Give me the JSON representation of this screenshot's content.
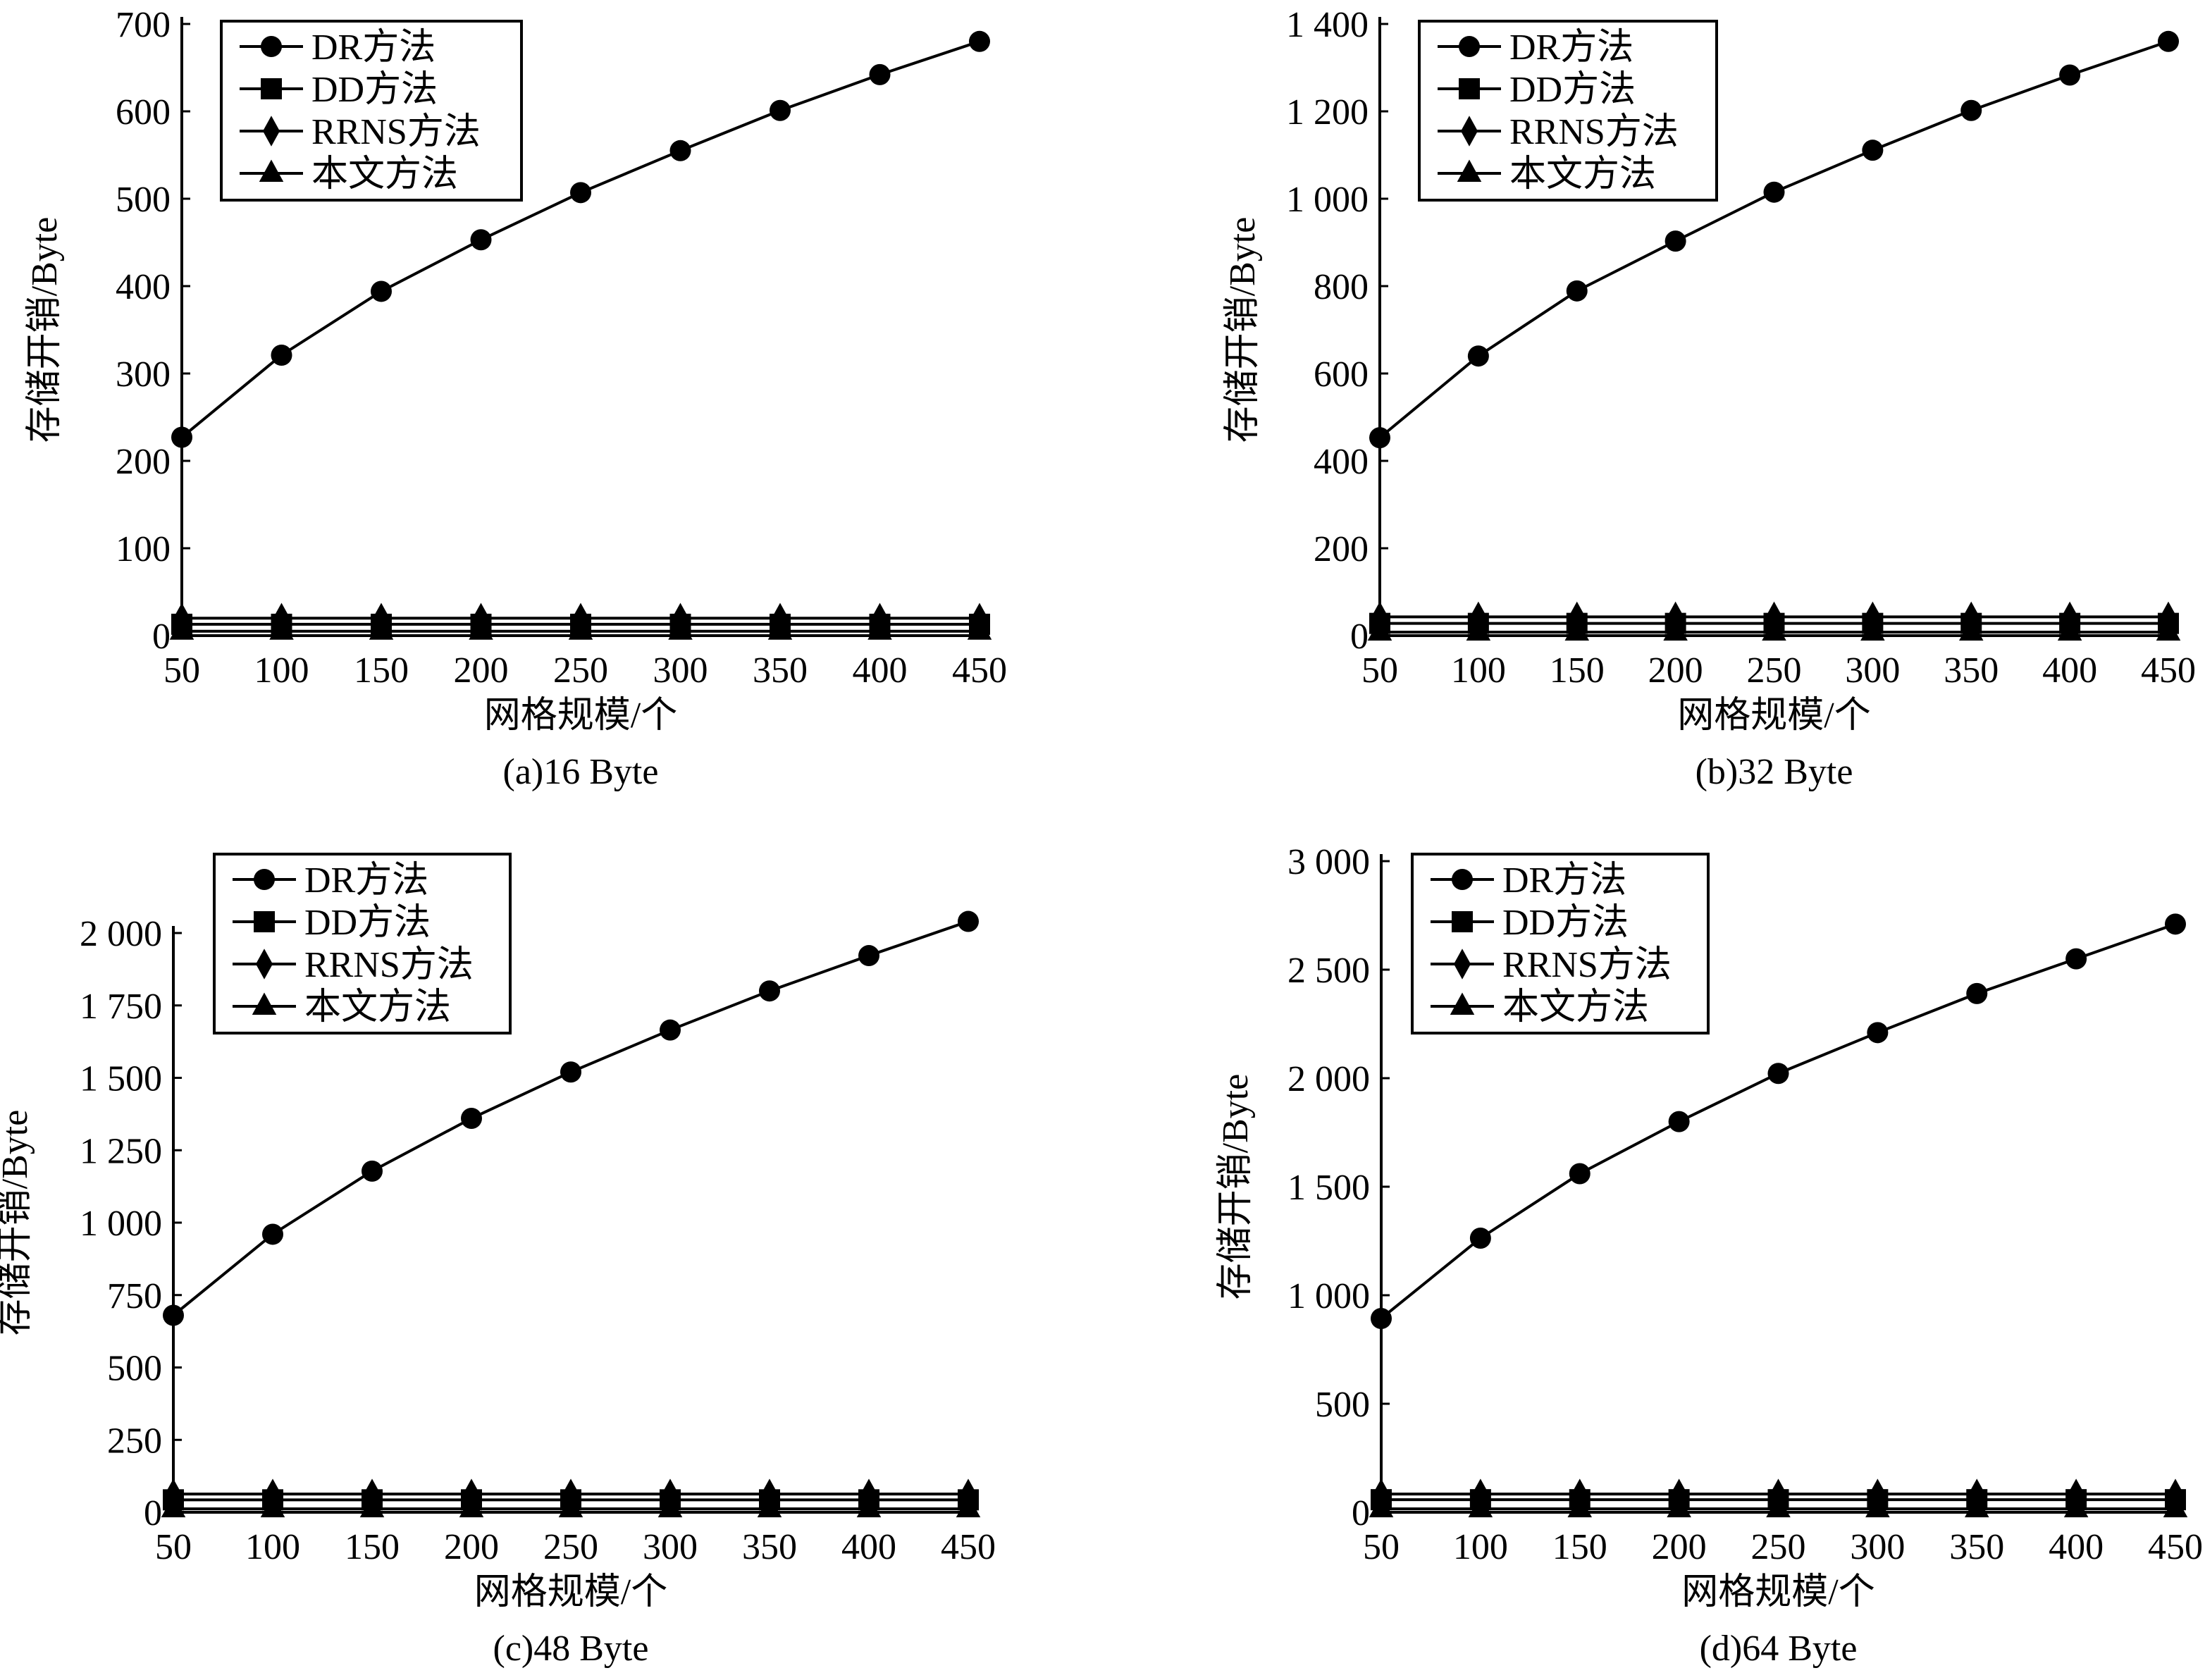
{
  "chart_data": [
    {
      "type": "line",
      "caption": "(a)16 Byte",
      "xlabel": "网格规模/个",
      "ylabel": "存储开销/Byte",
      "x": [
        50,
        100,
        150,
        200,
        250,
        300,
        350,
        400,
        450
      ],
      "xlim": [
        50,
        450
      ],
      "ylim": [
        0,
        700
      ],
      "yticks": [
        0,
        100,
        200,
        300,
        400,
        500,
        600,
        700
      ],
      "ytick_labels": [
        "0",
        "100",
        "200",
        "300",
        "400",
        "500",
        "600",
        "700"
      ],
      "legend_position": "top-left",
      "series": [
        {
          "name": "DR方法",
          "marker": "circle",
          "values": [
            227,
            321,
            394,
            453,
            507,
            555,
            601,
            642,
            680
          ]
        },
        {
          "name": "DD方法",
          "marker": "square",
          "values": [
            13,
            13,
            13,
            13,
            13,
            13,
            13,
            13,
            13
          ]
        },
        {
          "name": "RRNS方法",
          "marker": "diamond",
          "values": [
            20,
            20,
            20,
            20,
            20,
            20,
            20,
            20,
            20
          ]
        },
        {
          "name": "本文方法",
          "marker": "triangle",
          "values": [
            5,
            5,
            5,
            5,
            5,
            5,
            5,
            5,
            5
          ]
        }
      ]
    },
    {
      "type": "line",
      "caption": "(b)32 Byte",
      "xlabel": "网格规模/个",
      "ylabel": "存储开销/Byte",
      "x": [
        50,
        100,
        150,
        200,
        250,
        300,
        350,
        400,
        450
      ],
      "xlim": [
        50,
        450
      ],
      "ylim": [
        0,
        1400
      ],
      "yticks": [
        0,
        200,
        400,
        600,
        800,
        1000,
        1200,
        1400
      ],
      "ytick_labels": [
        "0",
        "200",
        "400",
        "600",
        "800",
        "1 000",
        "1 200",
        "1 400"
      ],
      "legend_position": "top-left",
      "series": [
        {
          "name": "DR方法",
          "marker": "circle",
          "values": [
            453,
            640,
            789,
            903,
            1015,
            1111,
            1202,
            1283,
            1360
          ]
        },
        {
          "name": "DD方法",
          "marker": "square",
          "values": [
            28,
            28,
            28,
            28,
            28,
            28,
            28,
            28,
            28
          ]
        },
        {
          "name": "RRNS方法",
          "marker": "diamond",
          "values": [
            43,
            43,
            43,
            43,
            43,
            43,
            43,
            43,
            43
          ]
        },
        {
          "name": "本文方法",
          "marker": "triangle",
          "values": [
            8,
            8,
            8,
            8,
            8,
            8,
            8,
            8,
            8
          ]
        }
      ]
    },
    {
      "type": "line",
      "caption": "(c)48 Byte",
      "xlabel": "网格规模/个",
      "ylabel": "存储开销/Byte",
      "x": [
        50,
        100,
        150,
        200,
        250,
        300,
        350,
        400,
        450
      ],
      "xlim": [
        50,
        450
      ],
      "ylim": [
        0,
        2000
      ],
      "yticks": [
        0,
        250,
        500,
        750,
        1000,
        1250,
        1500,
        1750,
        2000
      ],
      "ytick_labels": [
        "0",
        "250",
        "500",
        "750",
        "1 000",
        "1 250",
        "1 500",
        "1 750",
        "2 000"
      ],
      "legend_position": "top-left",
      "series": [
        {
          "name": "DR方法",
          "marker": "circle",
          "values": [
            680,
            960,
            1178,
            1360,
            1520,
            1665,
            1800,
            1922,
            2040
          ]
        },
        {
          "name": "DD方法",
          "marker": "square",
          "values": [
            43,
            43,
            43,
            43,
            43,
            43,
            43,
            43,
            43
          ]
        },
        {
          "name": "RRNS方法",
          "marker": "diamond",
          "values": [
            63,
            63,
            63,
            63,
            63,
            63,
            63,
            63,
            63
          ]
        },
        {
          "name": "本文方法",
          "marker": "triangle",
          "values": [
            12,
            12,
            12,
            12,
            12,
            12,
            12,
            12,
            12
          ]
        }
      ]
    },
    {
      "type": "line",
      "caption": "(d)64 Byte",
      "xlabel": "网格规模/个",
      "ylabel": "存储开销/Byte",
      "x": [
        50,
        100,
        150,
        200,
        250,
        300,
        350,
        400,
        450
      ],
      "xlim": [
        50,
        450
      ],
      "ylim": [
        0,
        3000
      ],
      "yticks": [
        0,
        500,
        1000,
        1500,
        2000,
        2500,
        3000
      ],
      "ytick_labels": [
        "0",
        "500",
        "1 000",
        "1 500",
        "2 000",
        "2 500",
        "3 000"
      ],
      "legend_position": "top-left",
      "series": [
        {
          "name": "DR方法",
          "marker": "circle",
          "values": [
            893,
            1263,
            1560,
            1800,
            2022,
            2210,
            2390,
            2550,
            2710
          ]
        },
        {
          "name": "DD方法",
          "marker": "square",
          "values": [
            58,
            58,
            58,
            58,
            58,
            58,
            58,
            58,
            58
          ]
        },
        {
          "name": "RRNS方法",
          "marker": "diamond",
          "values": [
            84,
            84,
            84,
            84,
            84,
            84,
            84,
            84,
            84
          ]
        },
        {
          "name": "本文方法",
          "marker": "triangle",
          "values": [
            16,
            16,
            16,
            16,
            16,
            16,
            16,
            16,
            16
          ]
        }
      ]
    }
  ]
}
